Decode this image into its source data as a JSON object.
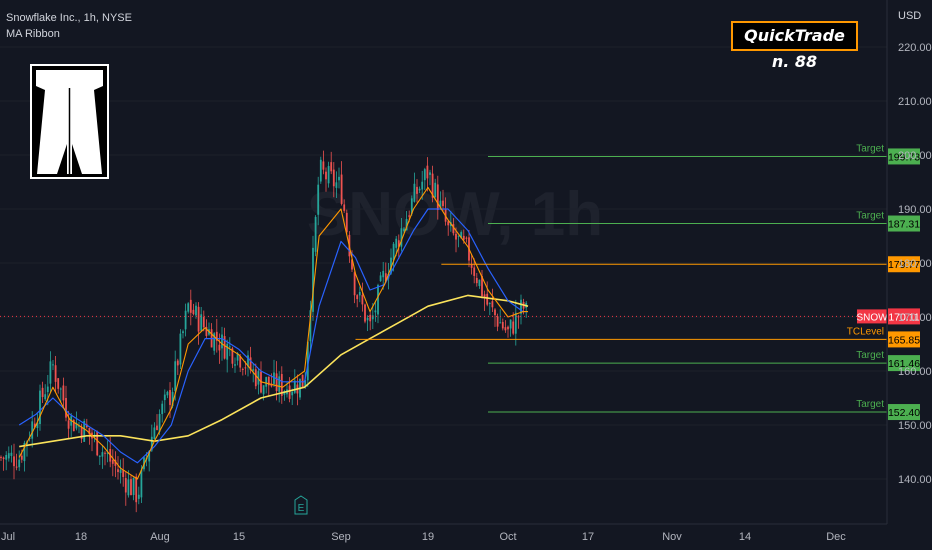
{
  "header": {
    "symbol_line": "Snowflake Inc., 1h, NYSE",
    "indicator": "MA Ribbon"
  },
  "watermark": "SNOW, 1h",
  "badge": {
    "text": "QuickTrade n. 88"
  },
  "colors": {
    "background": "#131722",
    "target": "#4caf50",
    "orange": "#ff9800",
    "price": "#f23645",
    "ma_fast": "#ff9800",
    "ma_mid": "#2962ff",
    "ma_slow": "#fbe35b",
    "candle_up": "#26a69a",
    "candle_down": "#ef5350"
  },
  "chart_data": {
    "type": "candlestick",
    "symbol": "SNOW",
    "last_price": 170.11,
    "currency": "USD",
    "y_ticks": [
      140.0,
      150.0,
      160.0,
      170.0,
      180.0,
      190.0,
      200.0,
      210.0,
      220.0
    ],
    "ylim": [
      132.8,
      221.6
    ],
    "x_ticks": [
      "Jul",
      "18",
      "Aug",
      "15",
      "Sep",
      "19",
      "Oct",
      "17",
      "Nov",
      "14",
      "Dec"
    ],
    "levels": [
      {
        "label": "Target",
        "value": 199.73,
        "color": "target",
        "start": "Sep 25"
      },
      {
        "label": "Target",
        "value": 187.31,
        "color": "target",
        "start": "Sep 25"
      },
      {
        "label": "",
        "value": 179.77,
        "color": "orange",
        "start": "Sep 18"
      },
      {
        "label": "TCLevel",
        "value": 165.85,
        "color": "orange",
        "start": "Sep 1"
      },
      {
        "label": "Target",
        "value": 161.46,
        "color": "target",
        "start": "Sep 25"
      },
      {
        "label": "Target",
        "value": 152.4,
        "color": "target",
        "start": "Sep 25"
      }
    ],
    "price_path": [
      [
        "Jul 7",
        144
      ],
      [
        "Jul 10",
        152
      ],
      [
        "Jul 13",
        161
      ],
      [
        "Jul 16",
        151
      ],
      [
        "Jul 19",
        149
      ],
      [
        "Jul 22",
        145
      ],
      [
        "Jul 25",
        141
      ],
      [
        "Jul 28",
        137
      ],
      [
        "Jul 31",
        150
      ],
      [
        "Aug 3",
        156
      ],
      [
        "Aug 6",
        172
      ],
      [
        "Aug 9",
        168
      ],
      [
        "Aug 12",
        165
      ],
      [
        "Aug 15",
        163
      ],
      [
        "Aug 18",
        158
      ],
      [
        "Aug 21",
        157
      ],
      [
        "Aug 24",
        158
      ],
      [
        "Aug 26",
        197
      ],
      [
        "Aug 29",
        194
      ],
      [
        "Sep 1",
        175
      ],
      [
        "Sep 4",
        168
      ],
      [
        "Sep 7",
        178
      ],
      [
        "Sep 10",
        185
      ],
      [
        "Sep 13",
        192
      ],
      [
        "Sep 16",
        197
      ],
      [
        "Sep 19",
        186
      ],
      [
        "Sep 22",
        182
      ],
      [
        "Sep 25",
        172
      ],
      [
        "Sep 28",
        167
      ],
      [
        "Oct 1",
        172
      ],
      [
        "Oct 2",
        170
      ]
    ],
    "ma_ribbon": {
      "fast": [
        [
          "Jul 7",
          144
        ],
        [
          "Jul 10",
          150
        ],
        [
          "Jul 13",
          157
        ],
        [
          "Jul 16",
          151
        ],
        [
          "Jul 19",
          149
        ],
        [
          "Jul 22",
          146
        ],
        [
          "Jul 25",
          142
        ],
        [
          "Jul 28",
          140
        ],
        [
          "Jul 31",
          147
        ],
        [
          "Aug 3",
          153
        ],
        [
          "Aug 6",
          165
        ],
        [
          "Aug 9",
          168
        ],
        [
          "Aug 12",
          165
        ],
        [
          "Aug 15",
          163
        ],
        [
          "Aug 18",
          158
        ],
        [
          "Aug 21",
          157
        ],
        [
          "Aug 24",
          160
        ],
        [
          "Aug 26",
          185
        ],
        [
          "Aug 29",
          190
        ],
        [
          "Sep 1",
          178
        ],
        [
          "Sep 4",
          171
        ],
        [
          "Sep 7",
          176
        ],
        [
          "Sep 10",
          183
        ],
        [
          "Sep 13",
          190
        ],
        [
          "Sep 16",
          194
        ],
        [
          "Sep 19",
          188
        ],
        [
          "Sep 22",
          183
        ],
        [
          "Sep 25",
          175
        ],
        [
          "Sep 28",
          170
        ],
        [
          "Oct 1",
          171
        ],
        [
          "Oct 2",
          171
        ]
      ],
      "mid": [
        [
          "Jul 7",
          150
        ],
        [
          "Jul 10",
          152
        ],
        [
          "Jul 13",
          155
        ],
        [
          "Jul 16",
          152
        ],
        [
          "Jul 19",
          150
        ],
        [
          "Jul 22",
          148
        ],
        [
          "Jul 25",
          145
        ],
        [
          "Jul 28",
          143
        ],
        [
          "Jul 31",
          146
        ],
        [
          "Aug 3",
          150
        ],
        [
          "Aug 6",
          160
        ],
        [
          "Aug 9",
          166
        ],
        [
          "Aug 12",
          166
        ],
        [
          "Aug 15",
          164
        ],
        [
          "Aug 18",
          160
        ],
        [
          "Aug 21",
          158
        ],
        [
          "Aug 24",
          158
        ],
        [
          "Aug 26",
          172
        ],
        [
          "Aug 29",
          184
        ],
        [
          "Sep 1",
          181
        ],
        [
          "Sep 4",
          175
        ],
        [
          "Sep 7",
          176
        ],
        [
          "Sep 10",
          181
        ],
        [
          "Sep 13",
          186
        ],
        [
          "Sep 16",
          190
        ],
        [
          "Sep 19",
          190
        ],
        [
          "Sep 22",
          186
        ],
        [
          "Sep 25",
          179
        ],
        [
          "Sep 28",
          173
        ],
        [
          "Oct 1",
          171
        ],
        [
          "Oct 2",
          171
        ]
      ],
      "slow": [
        [
          "Jul 7",
          146
        ],
        [
          "Jul 13",
          147
        ],
        [
          "Jul 19",
          148
        ],
        [
          "Jul 25",
          148
        ],
        [
          "Jul 31",
          147
        ],
        [
          "Aug 6",
          148
        ],
        [
          "Aug 12",
          151
        ],
        [
          "Aug 18",
          155
        ],
        [
          "Aug 24",
          157
        ],
        [
          "Aug 29",
          163
        ],
        [
          "Sep 4",
          166
        ],
        [
          "Sep 10",
          169
        ],
        [
          "Sep 16",
          172
        ],
        [
          "Sep 22",
          174
        ],
        [
          "Sep 28",
          173
        ],
        [
          "Oct 2",
          172
        ]
      ]
    }
  }
}
